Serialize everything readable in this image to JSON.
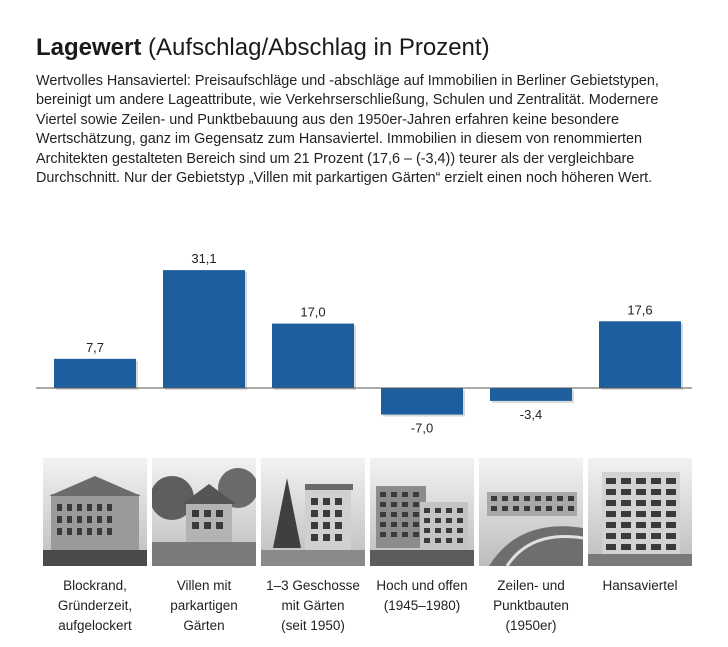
{
  "heading": {
    "title_bold": "Lagewert",
    "title_rest": "(Aufschlag/Abschlag in Prozent)",
    "description": "Wertvolles Hansaviertel: Preisaufschläge und -abschläge auf Immobilien in Berliner Gebietstypen, bereinigt um andere Lageattribute, wie Verkehrserschließung, Schulen und Zentralität. Modernere Viertel sowie Zeilen- und Punktbebauung aus den 1950er-Jahren erfahren keine besondere Wertschätzung, ganz im Gegensatz zum Hansaviertel. Immobilien in diesem von renommierten Architekten gestalteten Bereich sind um 21 Prozent (17,6 – (-3,4)) teurer als der vergleichbare Durchschnitt. Nur der Gebietstyp „Villen mit parkartigen Gärten“ erzielt einen noch höheren Wert."
  },
  "chart_data": {
    "type": "bar",
    "title": "Lagewert",
    "categories": [
      "Blockrand, Gründerzeit, aufgelockert",
      "Villen mit parkartigen Gärten",
      "1–3 Geschosse mit Gärten (seit 1950)",
      "Hoch und offen (1945–1980)",
      "Zeilen- und Punktbauten (1950er)",
      "Hansaviertel"
    ],
    "values": [
      7.7,
      31.1,
      17.0,
      -7.0,
      -3.4,
      17.6
    ],
    "value_labels": [
      "7,7",
      "31,1",
      "17,0",
      "-7,0",
      "-3,4",
      "17,6"
    ],
    "bar_color": "#1d5e9e",
    "baseline_color": "#555555",
    "grid": false,
    "legend": "none"
  },
  "category_labels": [
    [
      "Blockrand,",
      "Gründerzeit,",
      "aufgelockert"
    ],
    [
      "Villen mit",
      "parkartigen",
      "Gärten"
    ],
    [
      "1–3 Geschosse",
      "mit Gärten",
      "(seit 1950)"
    ],
    [
      "Hoch und offen",
      "(1945–1980)"
    ],
    [
      "Zeilen- und",
      "Punktbauten",
      "(1950er)"
    ],
    [
      "Hansaviertel"
    ]
  ],
  "photos": [
    {
      "icon": "gruenderzeit-building-photo"
    },
    {
      "icon": "villa-garden-photo"
    },
    {
      "icon": "house-with-garden-photo"
    },
    {
      "icon": "highrise-open-photo"
    },
    {
      "icon": "row-buildings-photo"
    },
    {
      "icon": "hansaviertel-building-photo"
    }
  ]
}
